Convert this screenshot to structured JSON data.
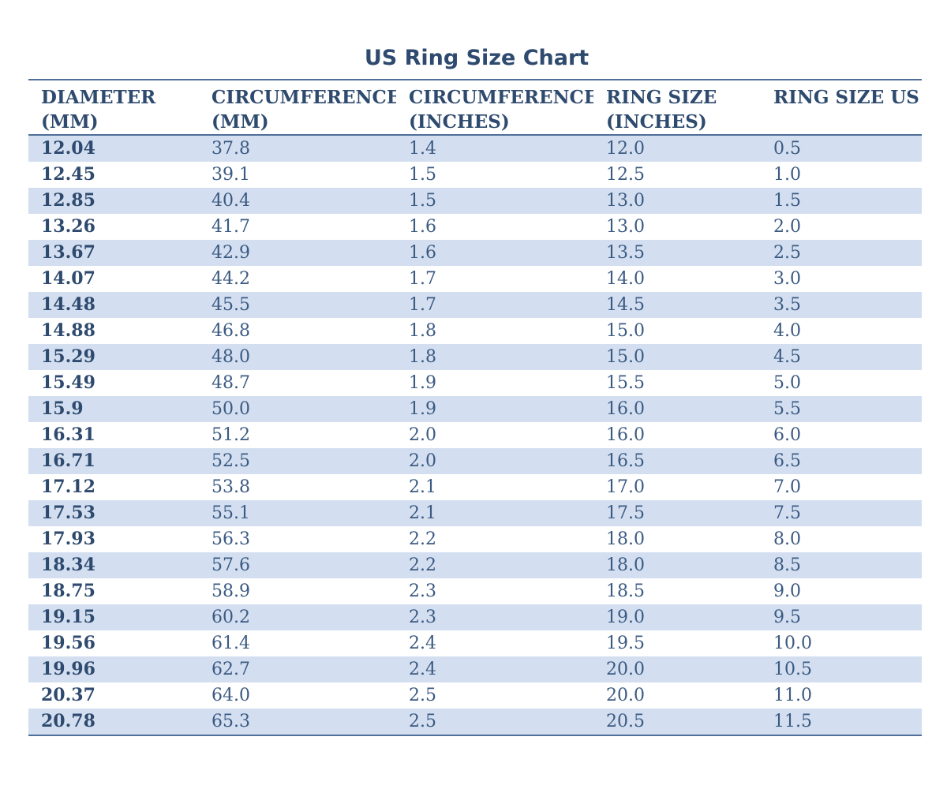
{
  "chart_data": {
    "type": "table",
    "title": "US Ring Size Chart",
    "columns": [
      "DIAMETER\n(MM)",
      "CIRCUMFERENCE\n(MM)",
      "CIRCUMFERENCE\n(INCHES)",
      "RING SIZE\n(INCHES)",
      "RING SIZE US"
    ],
    "rows": [
      [
        "12.04",
        "37.8",
        "1.4",
        "12.0",
        "0.5"
      ],
      [
        "12.45",
        "39.1",
        "1.5",
        "12.5",
        "1.0"
      ],
      [
        "12.85",
        "40.4",
        "1.5",
        "13.0",
        "1.5"
      ],
      [
        "13.26",
        "41.7",
        "1.6",
        "13.0",
        "2.0"
      ],
      [
        "13.67",
        "42.9",
        "1.6",
        "13.5",
        "2.5"
      ],
      [
        "14.07",
        "44.2",
        "1.7",
        "14.0",
        "3.0"
      ],
      [
        "14.48",
        "45.5",
        "1.7",
        "14.5",
        "3.5"
      ],
      [
        "14.88",
        "46.8",
        "1.8",
        "15.0",
        "4.0"
      ],
      [
        "15.29",
        "48.0",
        "1.8",
        "15.0",
        "4.5"
      ],
      [
        "15.49",
        "48.7",
        "1.9",
        "15.5",
        "5.0"
      ],
      [
        "15.9",
        "50.0",
        "1.9",
        "16.0",
        "5.5"
      ],
      [
        "16.31",
        "51.2",
        "2.0",
        "16.0",
        "6.0"
      ],
      [
        "16.71",
        "52.5",
        "2.0",
        "16.5",
        "6.5"
      ],
      [
        "17.12",
        "53.8",
        "2.1",
        "17.0",
        "7.0"
      ],
      [
        "17.53",
        "55.1",
        "2.1",
        "17.5",
        "7.5"
      ],
      [
        "17.93",
        "56.3",
        "2.2",
        "18.0",
        "8.0"
      ],
      [
        "18.34",
        "57.6",
        "2.2",
        "18.0",
        "8.5"
      ],
      [
        "18.75",
        "58.9",
        "2.3",
        "18.5",
        "9.0"
      ],
      [
        "19.15",
        "60.2",
        "2.3",
        "19.0",
        "9.5"
      ],
      [
        "19.56",
        "61.4",
        "2.4",
        "19.5",
        "10.0"
      ],
      [
        "19.96",
        "62.7",
        "2.4",
        "20.0",
        "10.5"
      ],
      [
        "20.37",
        "64.0",
        "2.5",
        "20.0",
        "11.0"
      ],
      [
        "20.78",
        "65.3",
        "2.5",
        "20.5",
        "11.5"
      ]
    ]
  },
  "colors": {
    "title": "#2e4a6e",
    "header_text": "#2e4a6e",
    "cell_text": "#3b5a82",
    "row_shade": "#d3dff0",
    "rule": "#4f6f98"
  }
}
